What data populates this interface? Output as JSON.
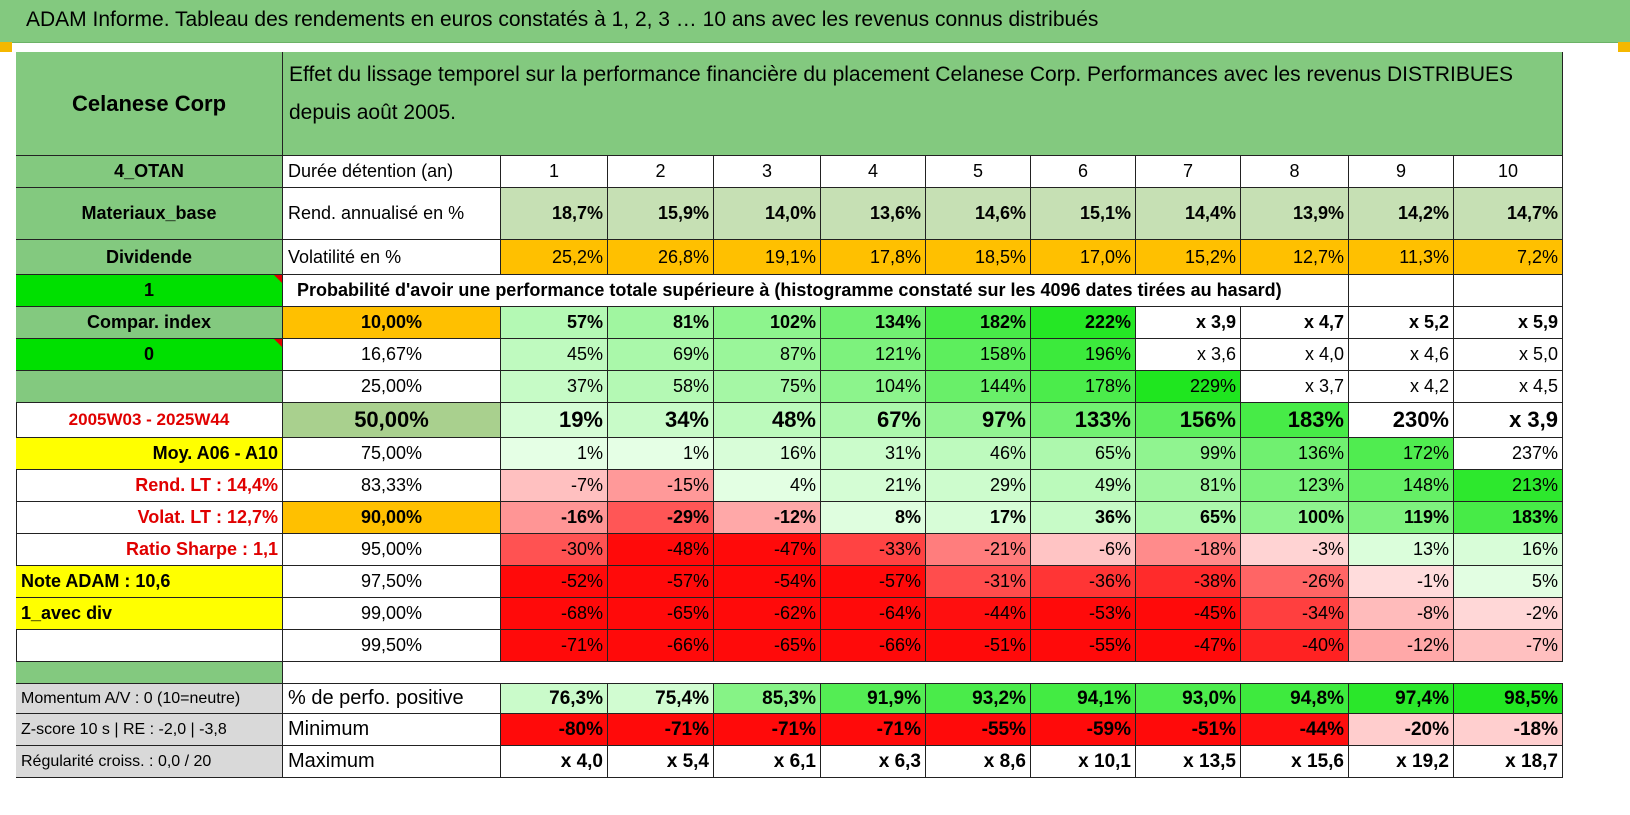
{
  "banner": "ADAM Informe. Tableau des rendements en euros constatés à 1, 2, 3 … 10 ans avec les revenus connus distribués",
  "header": {
    "company": "Celanese Corp",
    "title": "Effet du lissage temporel sur la performance financière du placement Celanese Corp. Performances avec les revenus DISTRIBUES depuis août 2005."
  },
  "side": [
    "4_OTAN",
    "Materiaux_base",
    "Dividende",
    "1",
    "Compar. index",
    "0",
    "",
    "2005W03 - 2025W44",
    "Moy. A06 - A10",
    "Rend. LT :    14,4%",
    "Volat. LT :    12,7%",
    "Ratio Sharpe :     1,1",
    "Note ADAM : 10,6",
    "1_avec div",
    "",
    "",
    "Momentum A/V : 0 (10=neutre)",
    "Z-score 10 s | RE : -2,0 | -3,8",
    "Régularité croiss. : 0,0 / 20"
  ],
  "stats_labels": [
    "Durée détention (an)",
    "Rend. annualisé en %",
    "Volatilité en %"
  ],
  "years": [
    "1",
    "2",
    "3",
    "4",
    "5",
    "6",
    "7",
    "8",
    "9",
    "10"
  ],
  "rendement": [
    "18,7%",
    "15,9%",
    "14,0%",
    "13,6%",
    "14,6%",
    "15,1%",
    "14,4%",
    "13,9%",
    "14,2%",
    "14,7%"
  ],
  "volatilite": [
    "25,2%",
    "26,8%",
    "19,1%",
    "17,8%",
    "18,5%",
    "17,0%",
    "15,2%",
    "12,7%",
    "11,3%",
    "7,2%"
  ],
  "prob_title": "Probabilité d'avoir une performance totale supérieure à (histogramme constaté sur les 4096 dates tirées au hasard)",
  "prob_rows": [
    {
      "level": "10,00%",
      "vals": [
        "57%",
        "81%",
        "102%",
        "134%",
        "182%",
        "222%",
        "x 3,9",
        "x 4,7",
        "x 5,2",
        "x 5,9"
      ]
    },
    {
      "level": "16,67%",
      "vals": [
        "45%",
        "69%",
        "87%",
        "121%",
        "158%",
        "196%",
        "x 3,6",
        "x 4,0",
        "x 4,6",
        "x 5,0"
      ]
    },
    {
      "level": "25,00%",
      "vals": [
        "37%",
        "58%",
        "75%",
        "104%",
        "144%",
        "178%",
        "229%",
        "x 3,7",
        "x 4,2",
        "x 4,5"
      ]
    },
    {
      "level": "50,00%",
      "vals": [
        "19%",
        "34%",
        "48%",
        "67%",
        "97%",
        "133%",
        "156%",
        "183%",
        "230%",
        "x 3,9"
      ]
    },
    {
      "level": "75,00%",
      "vals": [
        "1%",
        "1%",
        "16%",
        "31%",
        "46%",
        "65%",
        "99%",
        "136%",
        "172%",
        "237%"
      ]
    },
    {
      "level": "83,33%",
      "vals": [
        "-7%",
        "-15%",
        "4%",
        "21%",
        "29%",
        "49%",
        "81%",
        "123%",
        "148%",
        "213%"
      ]
    },
    {
      "level": "90,00%",
      "vals": [
        "-16%",
        "-29%",
        "-12%",
        "8%",
        "17%",
        "36%",
        "65%",
        "100%",
        "119%",
        "183%"
      ]
    },
    {
      "level": "95,00%",
      "vals": [
        "-30%",
        "-48%",
        "-47%",
        "-33%",
        "-21%",
        "-6%",
        "-18%",
        "-3%",
        "13%",
        "16%"
      ]
    },
    {
      "level": "97,50%",
      "vals": [
        "-52%",
        "-57%",
        "-54%",
        "-57%",
        "-31%",
        "-36%",
        "-38%",
        "-26%",
        "-1%",
        "5%"
      ]
    },
    {
      "level": "99,00%",
      "vals": [
        "-68%",
        "-65%",
        "-62%",
        "-64%",
        "-44%",
        "-53%",
        "-45%",
        "-34%",
        "-8%",
        "-2%"
      ]
    },
    {
      "level": "99,50%",
      "vals": [
        "-71%",
        "-66%",
        "-65%",
        "-66%",
        "-51%",
        "-55%",
        "-47%",
        "-40%",
        "-12%",
        "-7%"
      ]
    }
  ],
  "bottom_labels": [
    "% de perfo. positive",
    "Minimum",
    "Maximum"
  ],
  "perfo_positive": [
    "76,3%",
    "75,4%",
    "85,3%",
    "91,9%",
    "93,2%",
    "94,1%",
    "93,0%",
    "94,8%",
    "97,4%",
    "98,5%"
  ],
  "minimum": [
    "-80%",
    "-71%",
    "-71%",
    "-71%",
    "-55%",
    "-59%",
    "-51%",
    "-44%",
    "-20%",
    "-18%"
  ],
  "maximum": [
    "x 4,0",
    "x 5,4",
    "x 6,1",
    "x 6,3",
    "x 8,6",
    "x 10,1",
    "x 13,5",
    "x 15,6",
    "x 19,2",
    "x 18,7"
  ],
  "colors": {
    "header_green": "#83c97f",
    "bright_green": "#00e000",
    "yellow": "#ffff00",
    "orange": "#ffc000",
    "red_text": "#e00000",
    "side_label_bg": "#d9d9d9"
  }
}
